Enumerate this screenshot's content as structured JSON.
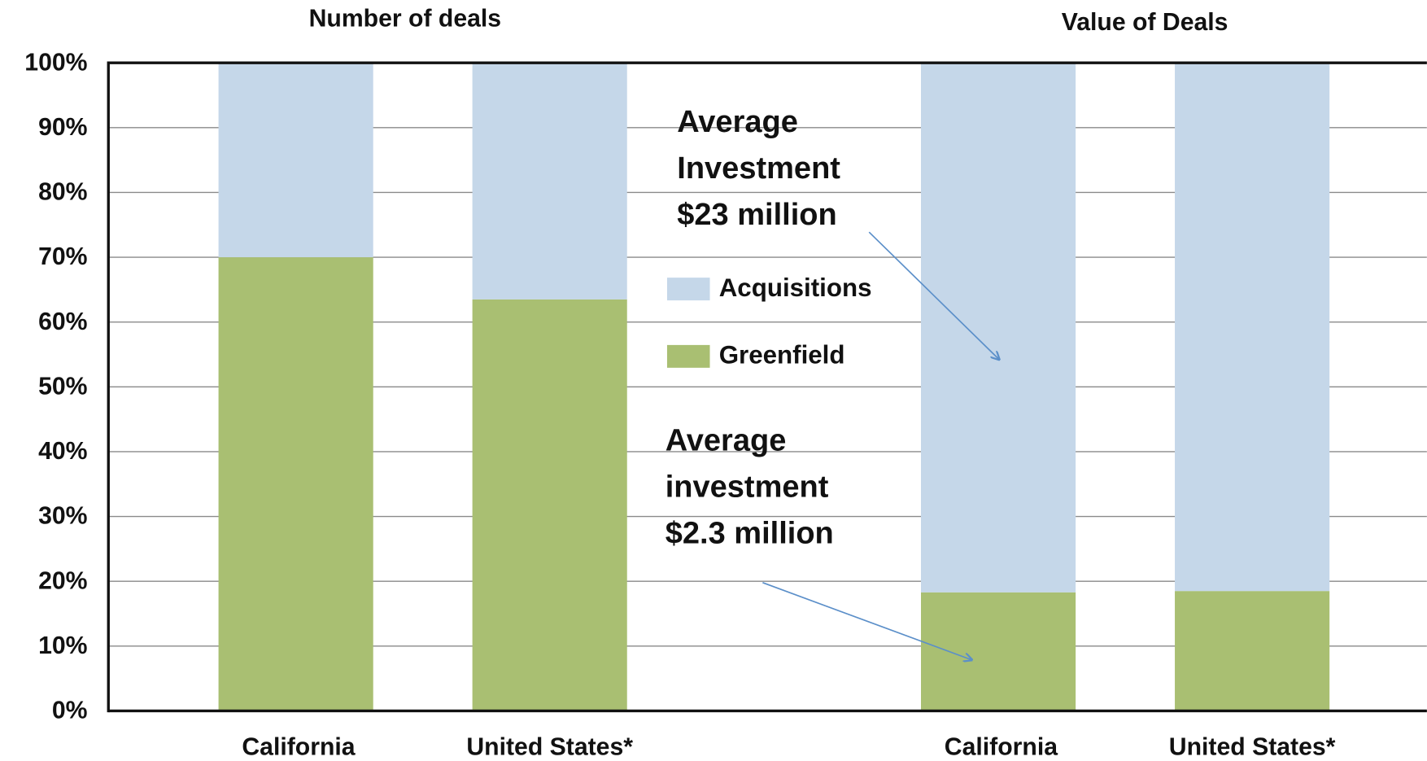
{
  "chart_data": {
    "type": "stacked_bar",
    "group_labels": [
      "Number of deals",
      "Value of Deals"
    ],
    "categories": [
      "California",
      "United States*",
      "California",
      "United States*"
    ],
    "series": [
      {
        "name": "Greenfield",
        "color": "#a9bf72",
        "values": [
          70,
          63.5,
          18.3,
          18.5
        ]
      },
      {
        "name": "Acquisitions",
        "color": "#c5d7e9",
        "values": [
          30,
          36.5,
          81.7,
          81.5
        ]
      }
    ],
    "ylim": [
      0,
      100
    ],
    "yticks": [
      {
        "value": 0,
        "label": "0%"
      },
      {
        "value": 10,
        "label": "10%"
      },
      {
        "value": 20,
        "label": "20%"
      },
      {
        "value": 30,
        "label": "30%"
      },
      {
        "value": 40,
        "label": "40%"
      },
      {
        "value": 50,
        "label": "50%"
      },
      {
        "value": 60,
        "label": "60%"
      },
      {
        "value": 70,
        "label": "70%"
      },
      {
        "value": 80,
        "label": "80%"
      },
      {
        "value": 90,
        "label": "90%"
      },
      {
        "value": 100,
        "label": "100%"
      }
    ],
    "grid": true,
    "annotations": [
      {
        "lines": [
          "Average",
          "Investment",
          " $23 million"
        ]
      },
      {
        "lines": [
          "Average",
          "investment",
          "$2.3 million"
        ]
      }
    ]
  }
}
